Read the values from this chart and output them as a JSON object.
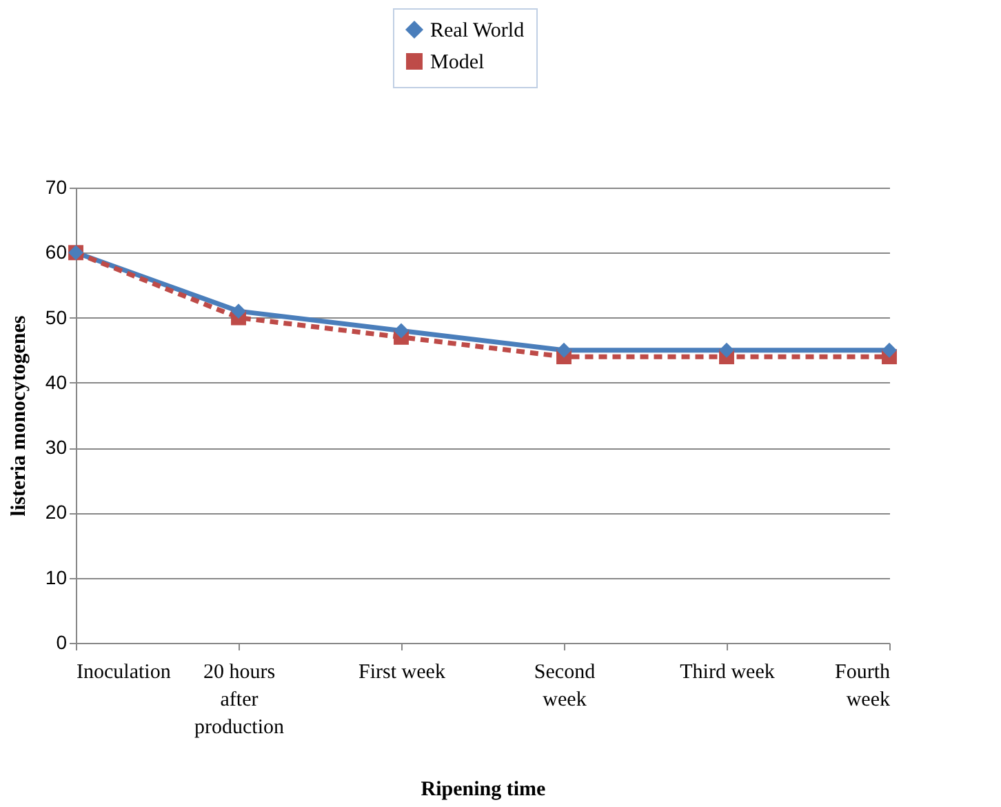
{
  "chart_data": {
    "type": "line",
    "xlabel": "Ripening time",
    "ylabel": "listeria monocytogenes",
    "categories": [
      "Inoculation",
      "20 hours after production",
      "First week",
      "Second week",
      "Third week",
      "Fourth week"
    ],
    "series": [
      {
        "name": "Real World",
        "color": "#4a7ebb",
        "values": [
          60,
          51,
          48,
          45,
          45,
          45
        ],
        "marker": "diamond",
        "line_style": "solid"
      },
      {
        "name": "Model",
        "color": "#be4b48",
        "values": [
          60,
          50,
          47,
          44,
          44,
          44
        ],
        "marker": "square",
        "line_style": "dashed"
      }
    ],
    "ylim": [
      0,
      70
    ],
    "yticks": [
      0,
      10,
      20,
      30,
      40,
      50,
      60,
      70
    ],
    "grid": "y",
    "legend": "top"
  }
}
